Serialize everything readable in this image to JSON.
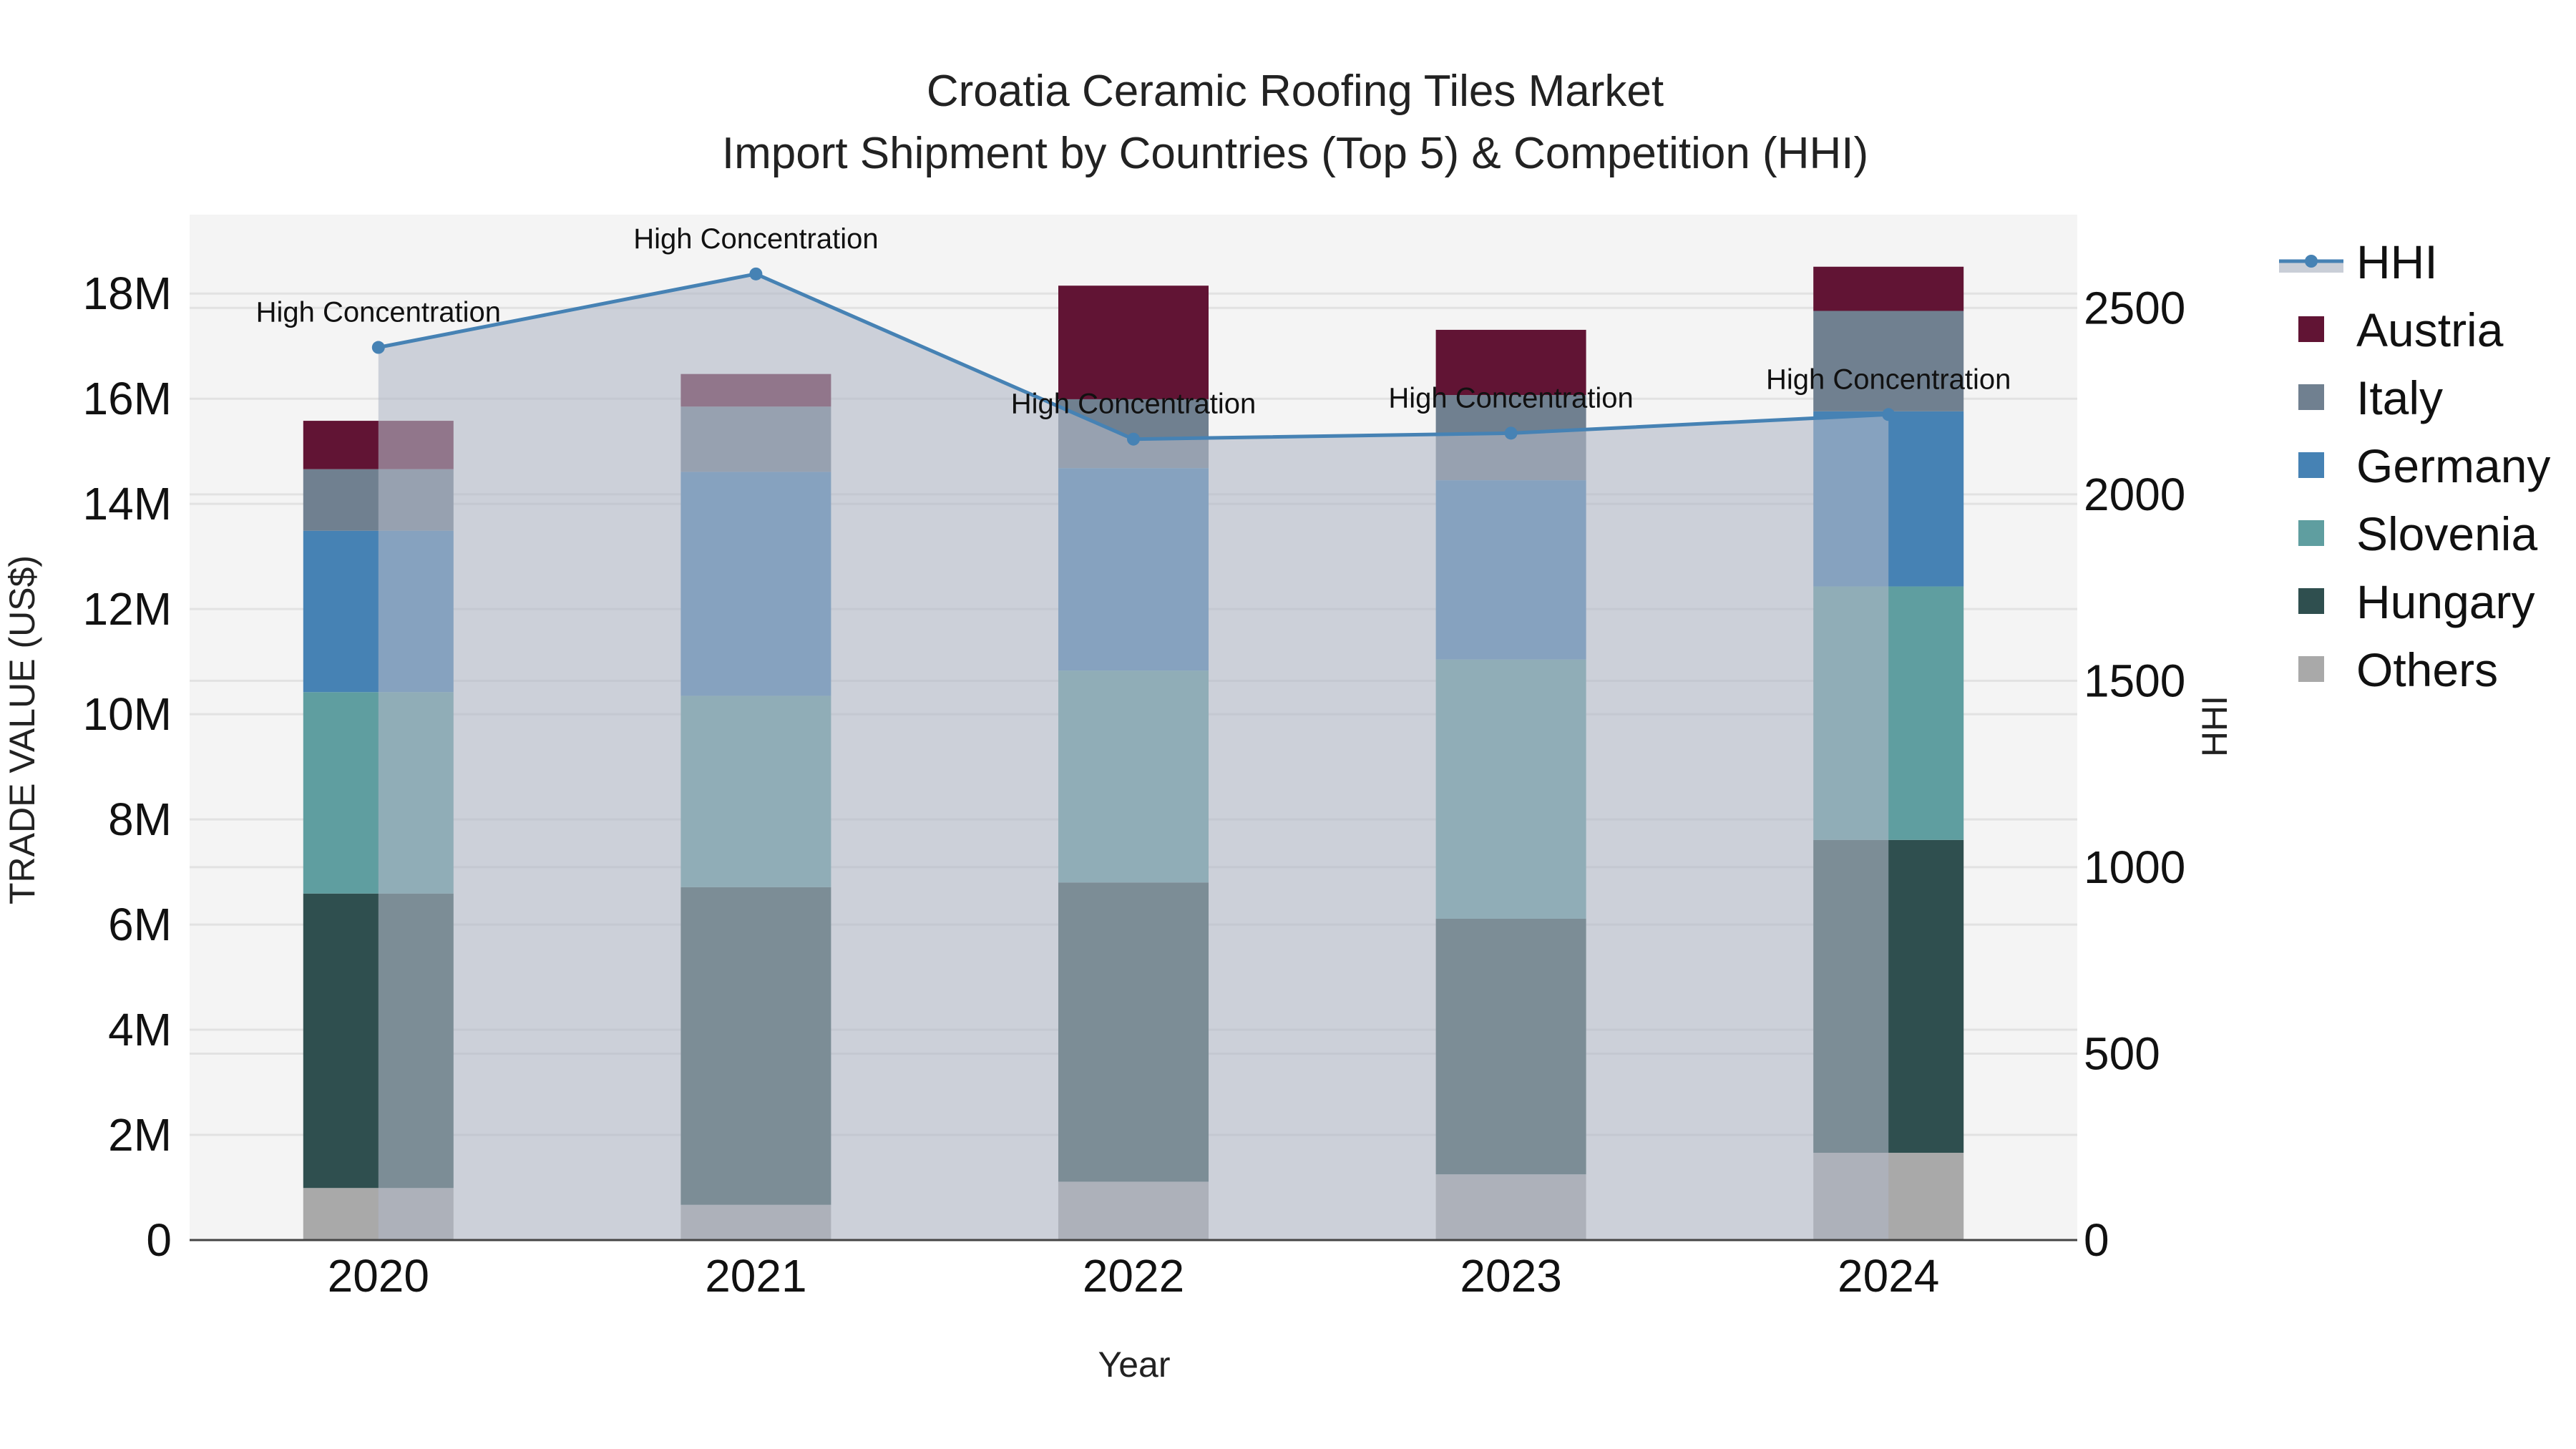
{
  "chart_data": {
    "type": "bar",
    "stacked": true,
    "title": "Croatia Ceramic Roofing Tiles Market",
    "subtitle": "Import Shipment by Countries (Top 5) & Competition (HHI)",
    "xlabel": "Year",
    "ylabel": "TRADE VALUE (US$)",
    "y2label": "HHI",
    "categories": [
      "2020",
      "2021",
      "2022",
      "2023",
      "2024"
    ],
    "ylim": [
      0,
      19500000
    ],
    "y_ticks": [
      0,
      2000000,
      4000000,
      6000000,
      8000000,
      10000000,
      12000000,
      14000000,
      16000000,
      18000000
    ],
    "y_tick_labels": [
      "0",
      "2M",
      "4M",
      "6M",
      "8M",
      "10M",
      "12M",
      "14M",
      "16M",
      "18M"
    ],
    "y2lim": [
      0,
      2750
    ],
    "y2_ticks": [
      0,
      500,
      1000,
      1500,
      2000,
      2500
    ],
    "y2_tick_labels": [
      "0",
      "500",
      "1000",
      "1500",
      "2000",
      "2500"
    ],
    "series": [
      {
        "name": "Others",
        "color": "#A9A9A9",
        "values": [
          990000,
          670000,
          1110000,
          1250000,
          1660000
        ]
      },
      {
        "name": "Hungary",
        "color": "#2F4F4F",
        "values": [
          5600000,
          6040000,
          5690000,
          4860000,
          5950000
        ]
      },
      {
        "name": "Slovenia",
        "color": "#5F9EA0",
        "values": [
          3830000,
          3640000,
          4030000,
          4930000,
          4820000
        ]
      },
      {
        "name": "Germany",
        "color": "#4682B4",
        "values": [
          3070000,
          4260000,
          3850000,
          3410000,
          3330000
        ]
      },
      {
        "name": "Italy",
        "color": "#708090",
        "values": [
          1170000,
          1240000,
          1310000,
          1620000,
          1910000
        ]
      },
      {
        "name": "Austria",
        "color": "#611434",
        "values": [
          920000,
          620000,
          2160000,
          1240000,
          840000
        ]
      }
    ],
    "line_series": {
      "name": "HHI",
      "axis": "right",
      "color": "#4682B4",
      "fill_color": "rgba(176,184,198,0.6)",
      "values": [
        2394,
        2591,
        2148,
        2164,
        2214
      ],
      "annotations": [
        "High Concentration",
        "High Concentration",
        "High Concentration",
        "High Concentration",
        "High Concentration"
      ]
    },
    "legend": {
      "position": "right",
      "items": [
        "HHI",
        "Austria",
        "Italy",
        "Germany",
        "Slovenia",
        "Hungary",
        "Others"
      ]
    },
    "grid": true,
    "plot_bgcolor": "#F4F4F4"
  }
}
